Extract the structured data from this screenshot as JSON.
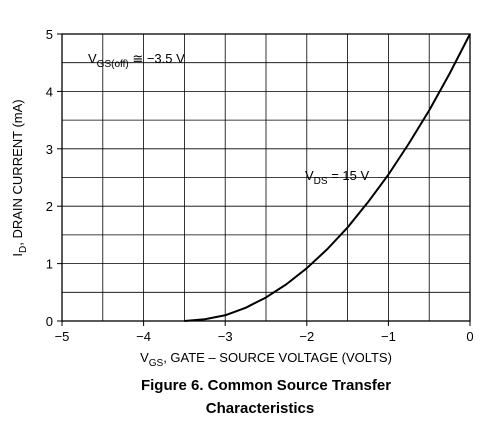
{
  "chart_data": {
    "type": "line",
    "caption": [
      "Figure 6. Common Source Transfer",
      "Characteristics"
    ],
    "xlabel": {
      "main": "V",
      "sub": "GS",
      "rest": ", GATE – SOURCE VOLTAGE (VOLTS)"
    },
    "ylabel": {
      "main": "I",
      "sub": "D",
      "rest": ", DRAIN CURRENT (mA)"
    },
    "annotations": [
      {
        "main": "V",
        "sub": "GS(off)",
        "rest": " ≅ −3.5 V"
      },
      {
        "main": "V",
        "sub": "DS",
        "rest": " = 15 V"
      }
    ],
    "x": [
      -3.5,
      -3.25,
      -3,
      -2.75,
      -2.5,
      -2.25,
      -2,
      -1.75,
      -1.5,
      -1.25,
      -1,
      -0.75,
      -0.5,
      -0.25,
      0
    ],
    "values": [
      0,
      0.03,
      0.1,
      0.23,
      0.41,
      0.64,
      0.92,
      1.25,
      1.63,
      2.07,
      2.55,
      3.09,
      3.67,
      4.31,
      5
    ],
    "color": "#000000",
    "xlim": [
      -5,
      0
    ],
    "ylim": [
      0,
      5
    ],
    "xticks": [
      {
        "value": -5,
        "label": "−5"
      },
      {
        "value": -4,
        "label": "−4"
      },
      {
        "value": -3,
        "label": "−3"
      },
      {
        "value": -2,
        "label": "−2"
      },
      {
        "value": -1,
        "label": "−1"
      },
      0
    ],
    "yticks": [
      0,
      1,
      2,
      3,
      4,
      5
    ],
    "xgrid": [
      -4.5,
      -4,
      -3.5,
      -3,
      -2.5,
      -2,
      -1.5,
      -1,
      -0.5
    ],
    "ygrid": [
      0.5,
      1,
      1.5,
      2,
      2.5,
      3,
      3.5,
      4,
      4.5
    ],
    "grid": true
  }
}
